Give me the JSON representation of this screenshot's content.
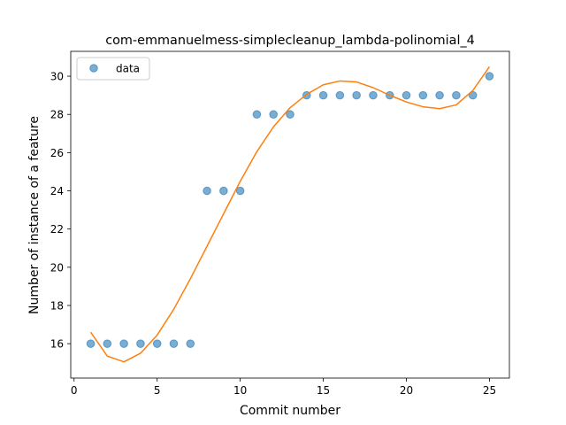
{
  "chart_data": {
    "type": "scatter",
    "title": "com-emmanuelmess-simplecleanup_lambda-polinomial_4",
    "xlabel": "Commit number",
    "ylabel": "Number of instance of a feature",
    "xlim": [
      -0.2,
      26.2
    ],
    "ylim": [
      14.2,
      31.3
    ],
    "xticks": [
      0,
      5,
      10,
      15,
      20,
      25
    ],
    "yticks": [
      16,
      18,
      20,
      22,
      24,
      26,
      28,
      30
    ],
    "legend": {
      "position": "top-left",
      "entries": [
        "data"
      ]
    },
    "grid": false,
    "series": [
      {
        "name": "data",
        "kind": "points",
        "color": "#1f77b4",
        "x": [
          1,
          2,
          3,
          4,
          5,
          6,
          7,
          8,
          9,
          10,
          11,
          12,
          13,
          14,
          15,
          16,
          17,
          18,
          19,
          20,
          21,
          22,
          23,
          24,
          25
        ],
        "y": [
          16,
          16,
          16,
          16,
          16,
          16,
          16,
          24,
          24,
          24,
          28,
          28,
          28,
          29,
          29,
          29,
          29,
          29,
          29,
          29,
          29,
          29,
          29,
          29,
          30
        ]
      },
      {
        "kind": "line",
        "color": "#ff7f0e",
        "x": [
          1,
          2,
          3,
          4,
          5,
          6,
          7,
          8,
          9,
          10,
          11,
          12,
          13,
          14,
          15,
          16,
          17,
          18,
          19,
          20,
          21,
          22,
          23,
          24,
          25
        ],
        "y": [
          16.6,
          15.35,
          15.05,
          15.5,
          16.45,
          17.8,
          19.4,
          21.1,
          22.8,
          24.5,
          26.05,
          27.35,
          28.35,
          29.05,
          29.55,
          29.75,
          29.7,
          29.4,
          29.0,
          28.65,
          28.4,
          28.3,
          28.5,
          29.25,
          30.5
        ]
      }
    ]
  }
}
